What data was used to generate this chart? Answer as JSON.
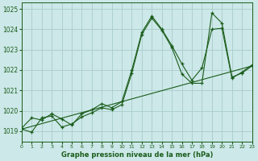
{
  "title": "Graphe pression niveau de la mer (hPa)",
  "bg_color": "#cce8e8",
  "grid_color": "#aacccc",
  "line_color": "#1a5c1a",
  "xlim": [
    0,
    23
  ],
  "ylim": [
    1018.5,
    1025.3
  ],
  "yticks": [
    1019,
    1020,
    1021,
    1022,
    1023,
    1024,
    1025
  ],
  "xticks": [
    0,
    1,
    2,
    3,
    4,
    5,
    6,
    7,
    8,
    9,
    10,
    11,
    12,
    13,
    14,
    15,
    16,
    17,
    18,
    19,
    20,
    21,
    22,
    23
  ],
  "series_solid1": {
    "x": [
      0,
      1,
      2,
      3,
      4,
      5,
      6,
      7,
      8,
      9,
      10,
      11,
      12,
      13,
      14,
      15,
      16,
      17,
      18,
      19,
      20,
      21,
      22,
      23
    ],
    "y": [
      1019.1,
      1018.95,
      1019.65,
      1019.75,
      1019.2,
      1019.35,
      1019.7,
      1019.9,
      1020.15,
      1020.05,
      1020.3,
      1021.85,
      1023.75,
      1024.55,
      1023.95,
      1023.1,
      1021.8,
      1021.35,
      1021.35,
      1024.8,
      1024.3,
      1021.65,
      1021.85,
      1022.2
    ]
  },
  "series_solid2": {
    "x": [
      0,
      1,
      2,
      3,
      4,
      5,
      6,
      7,
      8,
      9,
      10,
      11,
      12,
      13,
      14,
      15,
      16,
      17,
      18,
      19,
      20,
      21,
      22,
      23
    ],
    "y": [
      1019.15,
      1019.65,
      1019.55,
      1019.85,
      1019.6,
      1019.3,
      1019.85,
      1020.05,
      1020.35,
      1020.15,
      1020.45,
      1022.0,
      1023.85,
      1024.65,
      1024.0,
      1023.2,
      1022.3,
      1021.5,
      1022.1,
      1024.0,
      1024.05,
      1021.6,
      1021.9,
      1022.25
    ]
  },
  "trend": {
    "x": [
      0,
      23
    ],
    "y": [
      1019.1,
      1022.2
    ]
  }
}
